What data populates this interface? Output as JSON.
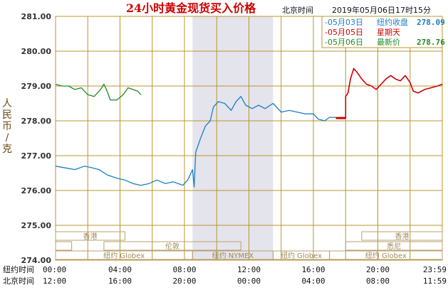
{
  "title": "24小时黄金现货买入价格",
  "header_time_label": "北京时间",
  "header_datetime": "2019年05月06日17时15分",
  "y_axis_label_chars": [
    "人",
    "民",
    "币",
    "/",
    "克"
  ],
  "x_axis": {
    "row1_label": "纽约时间",
    "row1_ticks": [
      "00:00",
      "04:00",
      "08:00",
      "12:00",
      "16:00",
      "20:00",
      "23:59"
    ],
    "row2_label": "北京时间",
    "row2_ticks": [
      "12:00",
      "16:00",
      "20:00",
      "00:00",
      "04:00",
      "08:00",
      "11:59"
    ]
  },
  "legend": [
    {
      "date": "-05月03日",
      "label": "纽约收盘",
      "value": "278.09",
      "color": "#1a7ec8"
    },
    {
      "date": "-05月05日",
      "label": "星期天",
      "value": "",
      "color": "#cc0000"
    },
    {
      "date": "-05月06日",
      "label": "最新价",
      "value": "278.76",
      "color": "#228b22"
    }
  ],
  "sessions": {
    "hongkong_left": "香港",
    "london": "伦敦",
    "newyork_nymex": "纽约 NYMEX",
    "globex_1": "纽约 Globex",
    "globex_2": "纽约 Globex",
    "hongkong_right": "香港",
    "sydney": "悉尼",
    "globex_3": "纽约 Globex"
  },
  "chart_data": {
    "type": "line",
    "title": "24小时黄金现货买入价格",
    "ylabel": "人民币/克",
    "xlabel": "纽约时间 / 北京时间",
    "ylim": [
      274.0,
      281.0
    ],
    "xlim_hours_ny": [
      0,
      24
    ],
    "yticks": [
      "274.00",
      "275.00",
      "276.00",
      "277.00",
      "278.00",
      "279.00",
      "280.00",
      "281.00"
    ],
    "grid": true,
    "nymex_session_hours_ny": [
      8.5,
      13.5
    ],
    "series": [
      {
        "name": "05月03日",
        "color": "#1a7ec8",
        "points": [
          [
            0.0,
            276.7
          ],
          [
            0.6,
            276.65
          ],
          [
            1.2,
            276.6
          ],
          [
            1.8,
            276.7
          ],
          [
            2.3,
            276.65
          ],
          [
            2.7,
            276.6
          ],
          [
            3.2,
            276.45
          ],
          [
            3.8,
            276.35
          ],
          [
            4.3,
            276.3
          ],
          [
            4.8,
            276.2
          ],
          [
            5.3,
            276.15
          ],
          [
            5.8,
            276.2
          ],
          [
            6.3,
            276.3
          ],
          [
            6.8,
            276.2
          ],
          [
            7.3,
            276.25
          ],
          [
            7.9,
            276.15
          ],
          [
            8.2,
            276.3
          ],
          [
            8.5,
            276.6
          ],
          [
            8.6,
            276.1
          ],
          [
            8.7,
            277.1
          ],
          [
            9.0,
            277.5
          ],
          [
            9.3,
            277.85
          ],
          [
            9.6,
            278.0
          ],
          [
            9.8,
            278.4
          ],
          [
            10.1,
            278.55
          ],
          [
            10.5,
            278.5
          ],
          [
            10.9,
            278.3
          ],
          [
            11.2,
            278.55
          ],
          [
            11.5,
            278.7
          ],
          [
            11.8,
            278.45
          ],
          [
            12.2,
            278.35
          ],
          [
            12.6,
            278.45
          ],
          [
            13.0,
            278.35
          ],
          [
            13.5,
            278.5
          ],
          [
            14.0,
            278.25
          ],
          [
            14.5,
            278.3
          ],
          [
            15.0,
            278.25
          ],
          [
            15.5,
            278.2
          ],
          [
            16.0,
            278.2
          ],
          [
            16.3,
            278.05
          ],
          [
            16.7,
            278.0
          ],
          [
            17.0,
            278.1
          ],
          [
            17.4,
            278.1
          ]
        ]
      },
      {
        "name": "05月05日",
        "color": "#cc0000",
        "points": [
          [
            17.4,
            278.08
          ],
          [
            18.0,
            278.08
          ],
          [
            18.0,
            278.7
          ],
          [
            18.15,
            278.8
          ],
          [
            18.3,
            279.2
          ],
          [
            18.5,
            279.5
          ],
          [
            18.7,
            279.4
          ],
          [
            19.0,
            279.2
          ],
          [
            19.3,
            279.05
          ],
          [
            19.6,
            279.0
          ],
          [
            19.9,
            278.9
          ],
          [
            20.2,
            279.05
          ],
          [
            20.5,
            279.2
          ],
          [
            20.8,
            279.3
          ],
          [
            21.1,
            279.2
          ],
          [
            21.4,
            279.15
          ],
          [
            21.7,
            279.3
          ],
          [
            22.0,
            279.1
          ],
          [
            22.2,
            278.85
          ],
          [
            22.5,
            278.8
          ],
          [
            22.9,
            278.9
          ],
          [
            23.3,
            278.95
          ],
          [
            23.7,
            279.0
          ],
          [
            24.0,
            279.05
          ]
        ]
      },
      {
        "name": "05月06日",
        "color": "#228b22",
        "points": [
          [
            0.0,
            279.05
          ],
          [
            0.4,
            279.0
          ],
          [
            0.8,
            279.0
          ],
          [
            1.2,
            278.9
          ],
          [
            1.6,
            278.95
          ],
          [
            2.0,
            278.75
          ],
          [
            2.4,
            278.7
          ],
          [
            2.8,
            278.9
          ],
          [
            3.0,
            279.05
          ],
          [
            3.2,
            278.85
          ],
          [
            3.4,
            278.6
          ],
          [
            3.8,
            278.6
          ],
          [
            4.2,
            278.75
          ],
          [
            4.5,
            278.95
          ],
          [
            4.8,
            278.9
          ],
          [
            5.1,
            278.85
          ],
          [
            5.3,
            278.75
          ]
        ]
      }
    ]
  }
}
